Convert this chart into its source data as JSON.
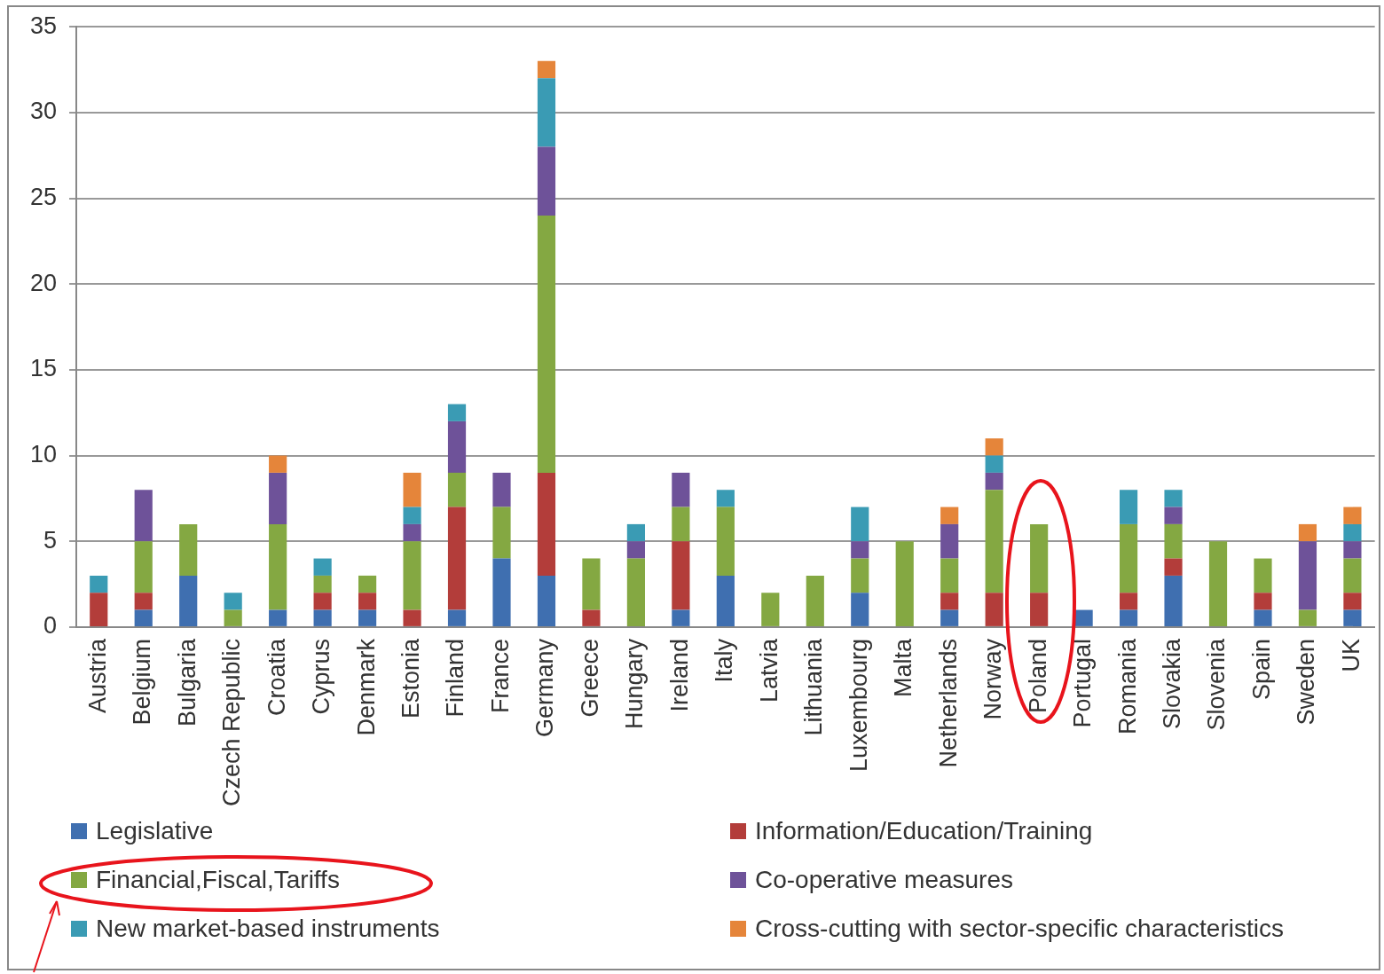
{
  "chart_data": {
    "type": "bar",
    "stacked": true,
    "categories": [
      "Austria",
      "Belgium",
      "Bulgaria",
      "Czech Republic",
      "Croatia",
      "Cyprus",
      "Denmark",
      "Estonia",
      "Finland",
      "France",
      "Germany",
      "Greece",
      "Hungary",
      "Ireland",
      "Italy",
      "Latvia",
      "Lithuania",
      "Luxembourg",
      "Malta",
      "Netherlands",
      "Norway",
      "Poland",
      "Portugal",
      "Romania",
      "Slovakia",
      "Slovenia",
      "Spain",
      "Sweden",
      "UK"
    ],
    "series": [
      {
        "name": "Legislative",
        "color": "#3f6fb0",
        "values": [
          0,
          1,
          3,
          0,
          1,
          1,
          1,
          0,
          1,
          4,
          3,
          0,
          0,
          1,
          3,
          0,
          0,
          2,
          0,
          1,
          0,
          0,
          1,
          1,
          3,
          0,
          1,
          0,
          1
        ]
      },
      {
        "name": "Information/Education/Training",
        "color": "#b33d3a",
        "values": [
          2,
          1,
          0,
          0,
          0,
          1,
          1,
          1,
          6,
          0,
          6,
          1,
          0,
          4,
          0,
          0,
          0,
          0,
          0,
          1,
          2,
          2,
          0,
          1,
          1,
          0,
          1,
          0,
          1
        ]
      },
      {
        "name": "Financial,Fiscal,Tariffs",
        "color": "#84a842",
        "values": [
          0,
          3,
          3,
          1,
          5,
          1,
          1,
          4,
          2,
          3,
          15,
          3,
          4,
          2,
          4,
          2,
          3,
          2,
          5,
          2,
          6,
          4,
          0,
          4,
          2,
          5,
          2,
          1,
          2
        ]
      },
      {
        "name": "Co-operative measures",
        "color": "#6e5299",
        "values": [
          0,
          3,
          0,
          0,
          3,
          0,
          0,
          1,
          3,
          2,
          4,
          0,
          1,
          2,
          0,
          0,
          0,
          1,
          0,
          2,
          1,
          0,
          0,
          0,
          1,
          0,
          0,
          4,
          1
        ]
      },
      {
        "name": "New market-based instruments",
        "color": "#3a9bb4",
        "values": [
          1,
          0,
          0,
          1,
          0,
          1,
          0,
          1,
          1,
          0,
          4,
          0,
          1,
          0,
          1,
          0,
          0,
          2,
          0,
          0,
          1,
          0,
          0,
          2,
          1,
          0,
          0,
          0,
          1
        ]
      },
      {
        "name": "Cross-cutting with sector-specific characteristics",
        "color": "#e5853a",
        "values": [
          0,
          0,
          0,
          0,
          1,
          0,
          0,
          2,
          0,
          0,
          1,
          0,
          0,
          0,
          0,
          0,
          0,
          0,
          0,
          1,
          1,
          0,
          0,
          0,
          0,
          0,
          0,
          1,
          1
        ]
      }
    ],
    "ylim": [
      0,
      35
    ],
    "yticks": [
      0,
      5,
      10,
      15,
      20,
      25,
      30,
      35
    ],
    "grid": "y",
    "legend": "bottom"
  }
}
